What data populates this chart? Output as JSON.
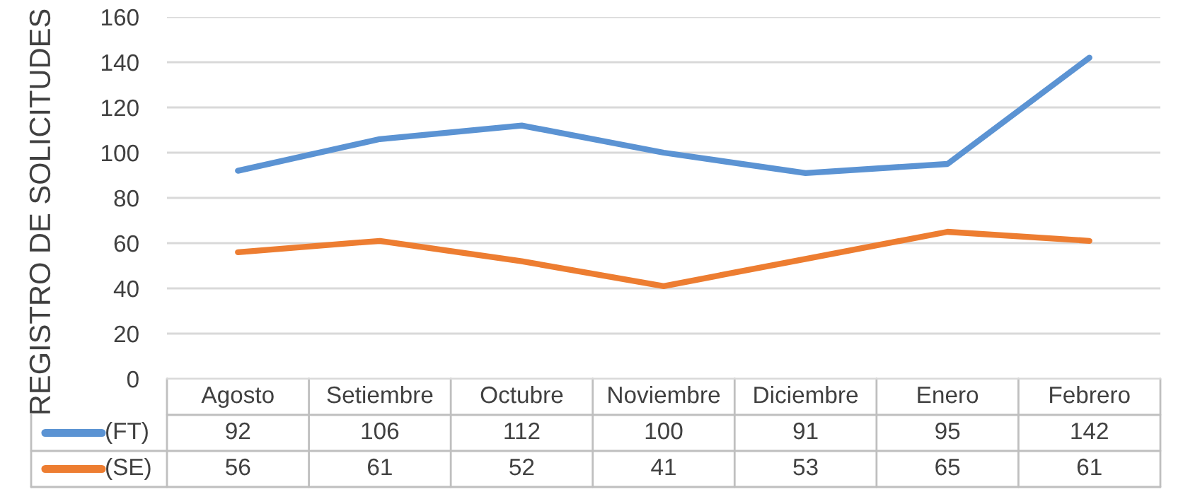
{
  "chart_data": {
    "type": "line",
    "ylabel": "REGISTRO DE SOLICITUDES",
    "categories": [
      "Agosto",
      "Setiembre",
      "Octubre",
      "Noviembre",
      "Diciembre",
      "Enero",
      "Febrero"
    ],
    "series": [
      {
        "name": "(FT)",
        "color": "#5b93d3",
        "values": [
          92,
          106,
          112,
          100,
          91,
          95,
          142
        ]
      },
      {
        "name": "(SE)",
        "color": "#ed7d31",
        "values": [
          56,
          61,
          52,
          41,
          53,
          65,
          61
        ]
      }
    ],
    "ylim": [
      0,
      160
    ],
    "yticks": [
      0,
      20,
      40,
      60,
      80,
      100,
      120,
      140,
      160
    ],
    "grid": "y",
    "legend": "bottom",
    "data_labels": true,
    "marker": "none",
    "line_style": "solid"
  }
}
